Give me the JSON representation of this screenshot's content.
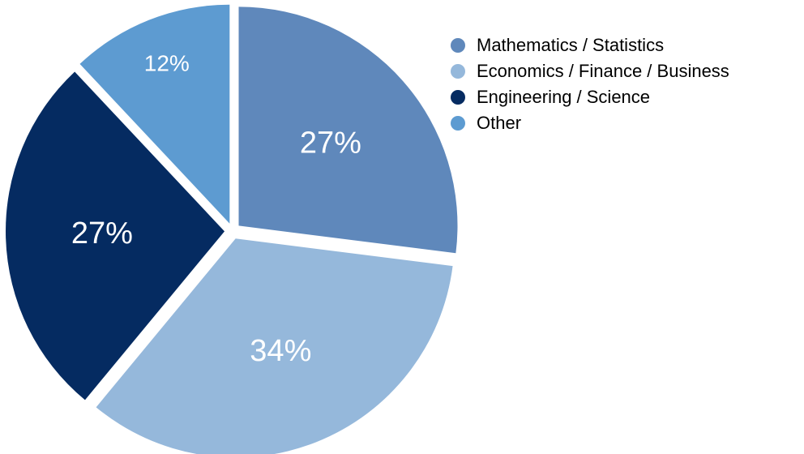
{
  "chart_data": {
    "type": "pie",
    "title": "",
    "slices": [
      {
        "name": "Mathematics / Statistics",
        "value": 27,
        "label": "27%",
        "color": "#5f88bb"
      },
      {
        "name": "Economics / Finance / Business",
        "value": 34,
        "label": "34%",
        "color": "#95b8db"
      },
      {
        "name": "Engineering / Science",
        "value": 27,
        "label": "27%",
        "color": "#052b61"
      },
      {
        "name": "Other",
        "value": 12,
        "label": "12%",
        "color": "#5d9bd1"
      }
    ],
    "start_position": "top",
    "direction": "clockwise",
    "exploded": true,
    "legend": "top-right"
  }
}
